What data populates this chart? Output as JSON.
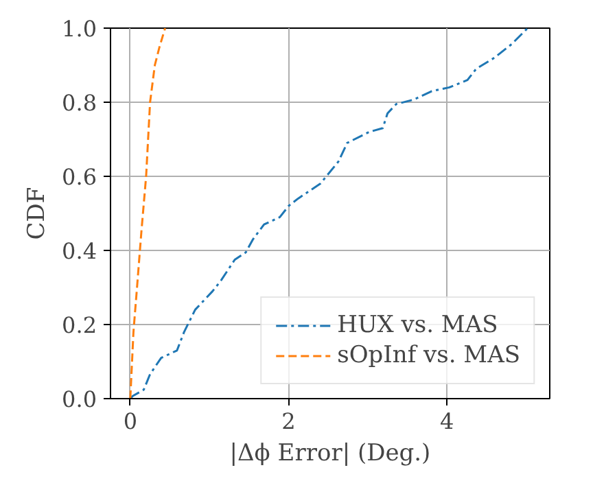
{
  "chart_data": {
    "type": "line",
    "xlabel": "|Δϕ Error| (Deg.)",
    "ylabel": "CDF",
    "xlim": [
      -0.25,
      5.3
    ],
    "ylim": [
      0,
      1
    ],
    "xticks": [
      0,
      2,
      4
    ],
    "yticks": [
      {
        "value": 0,
        "label": "0.0"
      },
      0.2,
      0.4,
      0.6,
      0.8,
      {
        "value": 1,
        "label": "1.0"
      }
    ],
    "grid": true,
    "legend": "bottom right",
    "series": [
      {
        "name": "HUX vs. MAS",
        "color": "#1f77b4",
        "line_style": "dashdot",
        "x": [
          0.0,
          0.03,
          0.17,
          0.25,
          0.39,
          0.59,
          0.68,
          0.82,
          1.04,
          1.15,
          1.32,
          1.46,
          1.55,
          1.69,
          1.89,
          2.0,
          2.12,
          2.4,
          2.63,
          2.74,
          3.02,
          3.19,
          3.25,
          3.36,
          3.58,
          3.81,
          4.03,
          4.26,
          4.37,
          4.6,
          4.82,
          5.02
        ],
        "values": [
          0.0,
          0.007,
          0.024,
          0.066,
          0.11,
          0.13,
          0.18,
          0.24,
          0.29,
          0.32,
          0.375,
          0.395,
          0.43,
          0.47,
          0.49,
          0.52,
          0.54,
          0.58,
          0.64,
          0.69,
          0.72,
          0.73,
          0.77,
          0.795,
          0.807,
          0.83,
          0.84,
          0.86,
          0.89,
          0.92,
          0.957,
          1.0
        ]
      },
      {
        "name": "sOpInf vs. MAS",
        "color": "#ff7f0e",
        "line_style": "dashed",
        "x": [
          0.0,
          0.04,
          0.085,
          0.14,
          0.2,
          0.25,
          0.31,
          0.37,
          0.44
        ],
        "values": [
          0.0,
          0.18,
          0.3,
          0.45,
          0.6,
          0.8,
          0.9,
          0.95,
          1.0
        ]
      }
    ]
  }
}
